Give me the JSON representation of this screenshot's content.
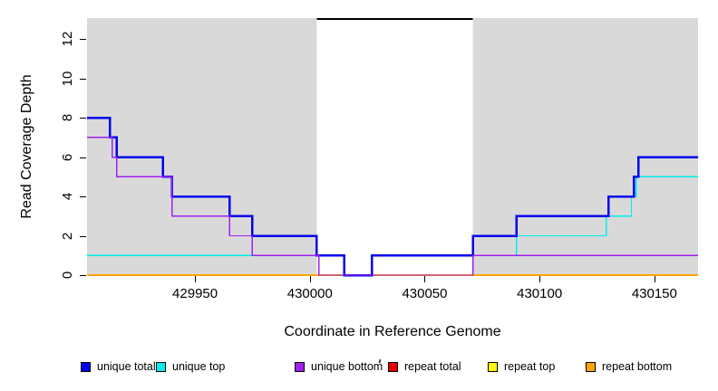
{
  "chart_data": {
    "type": "line",
    "step": true,
    "title": "",
    "xlabel": "Coordinate in Reference Genome",
    "ylabel": "Read Coverage Depth",
    "xlim": [
      429903,
      430169
    ],
    "ylim": [
      0,
      13.07
    ],
    "xticks": [
      429950,
      430000,
      430050,
      430100,
      430150
    ],
    "yticks": [
      0,
      2,
      4,
      6,
      8,
      10,
      12
    ],
    "grid": false,
    "legend_position": "bottom-horizontal",
    "shaded_regions": [
      {
        "x0": 429903,
        "x1": 430003,
        "color": "#D9D9D9"
      },
      {
        "x0": 430071,
        "x1": 430169,
        "color": "#D9D9D9"
      }
    ],
    "gap_top_line": {
      "x0": 430003,
      "x1": 430071,
      "y": "top",
      "color": "#000000"
    },
    "series": [
      {
        "name": "unique total",
        "color": "#0000EE",
        "lw": 2.5,
        "z": 5,
        "steps": [
          [
            429903,
            8
          ],
          [
            429913,
            7
          ],
          [
            429916,
            6
          ],
          [
            429936,
            5
          ],
          [
            429940,
            4
          ],
          [
            429965,
            3
          ],
          [
            429975,
            2
          ],
          [
            430003,
            1
          ],
          [
            430015,
            0
          ],
          [
            430027,
            1
          ],
          [
            430071,
            2
          ],
          [
            430090,
            3
          ],
          [
            430130,
            4
          ],
          [
            430141,
            5
          ],
          [
            430143,
            6
          ]
        ]
      },
      {
        "name": "unique top",
        "color": "#00EEEE",
        "lw": 1.4,
        "z": 4,
        "steps": [
          [
            429903,
            1
          ],
          [
            430015,
            0
          ],
          [
            430027,
            1
          ],
          [
            430090,
            2
          ],
          [
            430129,
            3
          ],
          [
            430140,
            4
          ],
          [
            430142,
            5
          ]
        ]
      },
      {
        "name": "unique bottom",
        "color": "#A020F0",
        "lw": 1.4,
        "z": 6,
        "steps": [
          [
            429903,
            7
          ],
          [
            429914,
            6
          ],
          [
            429916,
            5
          ],
          [
            429940,
            3
          ],
          [
            429965,
            2
          ],
          [
            429975,
            1
          ],
          [
            430004,
            0
          ],
          [
            430071,
            1
          ]
        ]
      },
      {
        "name": "repeat total",
        "color": "#EE0000",
        "lw": 1.4,
        "z": 1,
        "steps": [
          [
            429903,
            0
          ]
        ]
      },
      {
        "name": "repeat top",
        "color": "#FFFF00",
        "lw": 1.4,
        "z": 2,
        "steps": [
          [
            429903,
            0
          ]
        ]
      },
      {
        "name": "repeat bottom",
        "color": "#FFA500",
        "lw": 1.6,
        "z": 3,
        "steps": [
          [
            429903,
            0
          ]
        ]
      }
    ]
  }
}
